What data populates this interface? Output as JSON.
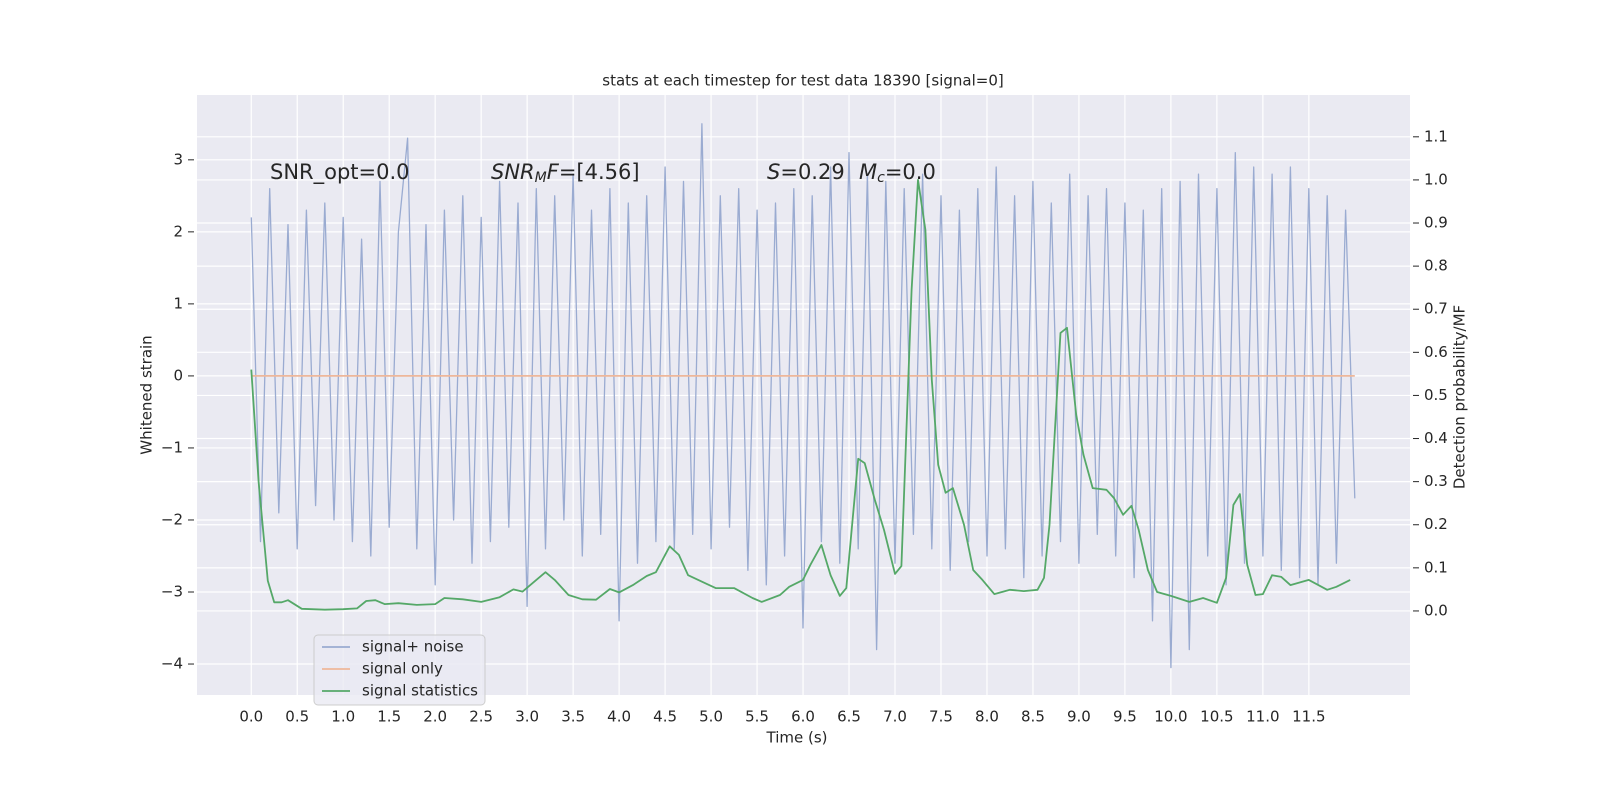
{
  "chart_data": {
    "type": "line",
    "title": "stats at each timestep for test data 18390 [signal=0]",
    "xlabel": "Time (s)",
    "ylabel": "Whitened strain",
    "y2label": "Detection probability/MF",
    "annotations": [
      {
        "parts": [
          {
            "text": "SNR_opt=0.0"
          }
        ]
      },
      {
        "parts": [
          {
            "text": "SNR",
            "italic": true
          },
          {
            "text": "M",
            "italic": true,
            "sub": true
          },
          {
            "text": "F",
            "italic": true
          },
          {
            "text": "=[4.56]"
          }
        ]
      },
      {
        "parts": [
          {
            "text": "S",
            "italic": true
          },
          {
            "text": "=0.29"
          }
        ]
      },
      {
        "parts": [
          {
            "text": "M",
            "italic": true
          },
          {
            "text": "c",
            "italic": true,
            "sub": true
          },
          {
            "text": "=0.0"
          }
        ]
      }
    ],
    "xlim": [
      -0.59,
      12.6
    ],
    "ylim": [
      -4.43,
      3.9
    ],
    "y2lim": [
      -0.195,
      1.197
    ],
    "xticks": [
      {
        "value": 0,
        "label": "0.0"
      },
      {
        "value": 0.5,
        "label": "0.5"
      },
      {
        "value": 1,
        "label": "1.0"
      },
      {
        "value": 1.5,
        "label": "1.5"
      },
      {
        "value": 2,
        "label": "2.0"
      },
      {
        "value": 2.5,
        "label": "2.5"
      },
      {
        "value": 3,
        "label": "3.0"
      },
      {
        "value": 3.5,
        "label": "3.5"
      },
      {
        "value": 4,
        "label": "4.0"
      },
      {
        "value": 4.5,
        "label": "4.5"
      },
      {
        "value": 5,
        "label": "5.0"
      },
      {
        "value": 5.5,
        "label": "5.5"
      },
      {
        "value": 6,
        "label": "6.0"
      },
      {
        "value": 6.5,
        "label": "6.5"
      },
      {
        "value": 7,
        "label": "7.0"
      },
      {
        "value": 7.5,
        "label": "7.5"
      },
      {
        "value": 8,
        "label": "8.0"
      },
      {
        "value": 8.5,
        "label": "8.5"
      },
      {
        "value": 9,
        "label": "9.0"
      },
      {
        "value": 9.5,
        "label": "9.5"
      },
      {
        "value": 10,
        "label": "10.0"
      },
      {
        "value": 10.5,
        "label": "10.5"
      },
      {
        "value": 11,
        "label": "11.0"
      },
      {
        "value": 11.5,
        "label": "11.5"
      }
    ],
    "yticks": [
      {
        "value": -4,
        "label": "−4"
      },
      {
        "value": -3,
        "label": "−3"
      },
      {
        "value": -2,
        "label": "−2"
      },
      {
        "value": -1,
        "label": "−1"
      },
      0,
      1,
      2,
      3
    ],
    "y2ticks": [
      {
        "value": 0,
        "label": "0.0"
      },
      {
        "value": 0.1,
        "label": "0.1"
      },
      {
        "value": 0.2,
        "label": "0.2"
      },
      {
        "value": 0.3,
        "label": "0.3"
      },
      {
        "value": 0.4,
        "label": "0.4"
      },
      {
        "value": 0.5,
        "label": "0.5"
      },
      {
        "value": 0.6,
        "label": "0.6"
      },
      {
        "value": 0.7,
        "label": "0.7"
      },
      {
        "value": 0.8,
        "label": "0.8"
      },
      {
        "value": 0.9,
        "label": "0.9"
      },
      {
        "value": 1.0,
        "label": "1.0"
      },
      {
        "value": 1.1,
        "label": "1.1"
      }
    ],
    "grid": true,
    "legend": "lower left",
    "series": [
      {
        "name": "signal+ noise",
        "color": "#9aabd1",
        "x": [
          0,
          0.1,
          0.2,
          0.3,
          0.4,
          0.5,
          0.6,
          0.7,
          0.8,
          0.9,
          1,
          1.1,
          1.2,
          1.3,
          1.4,
          1.5,
          1.6,
          1.7,
          1.8,
          1.9,
          2,
          2.1,
          2.2,
          2.3,
          2.4,
          2.5,
          2.6,
          2.7,
          2.8,
          2.9,
          3,
          3.1,
          3.2,
          3.3,
          3.4,
          3.5,
          3.6,
          3.7,
          3.8,
          3.9,
          4,
          4.1,
          4.2,
          4.3,
          4.4,
          4.5,
          4.6,
          4.7,
          4.8,
          4.9,
          5,
          5.1,
          5.2,
          5.3,
          5.4,
          5.5,
          5.6,
          5.7,
          5.8,
          5.9,
          6,
          6.1,
          6.2,
          6.3,
          6.4,
          6.5,
          6.6,
          6.7,
          6.8,
          6.9,
          7,
          7.1,
          7.2,
          7.3,
          7.4,
          7.5,
          7.6,
          7.7,
          7.8,
          7.9,
          8,
          8.1,
          8.2,
          8.3,
          8.4,
          8.5,
          8.6,
          8.7,
          8.8,
          8.9,
          9,
          9.1,
          9.2,
          9.3,
          9.4,
          9.5,
          9.6,
          9.7,
          9.8,
          9.9,
          10,
          10.1,
          10.2,
          10.3,
          10.4,
          10.5,
          10.6,
          10.7,
          10.8,
          10.9,
          11,
          11.1,
          11.2,
          11.3,
          11.4,
          11.5,
          11.6,
          11.7,
          11.8,
          11.9,
          12
        ],
        "values": [
          2.2,
          -2.3,
          2.6,
          -1.9,
          2.1,
          -2.4,
          2.3,
          -1.8,
          2.4,
          -2.0,
          2.2,
          -2.3,
          1.9,
          -2.5,
          2.7,
          -2.1,
          2.0,
          3.3,
          -2.4,
          2.1,
          -2.9,
          2.3,
          -2.0,
          2.5,
          -2.6,
          2.2,
          -2.3,
          2.7,
          -2.1,
          2.4,
          -3.2,
          2.6,
          -2.4,
          2.5,
          -2.0,
          2.8,
          -2.5,
          2.3,
          -2.2,
          2.6,
          -3.4,
          2.4,
          -2.6,
          2.5,
          -2.3,
          2.9,
          -2.4,
          2.7,
          -2.2,
          3.5,
          -2.4,
          2.5,
          -2.1,
          2.6,
          -2.7,
          2.3,
          -2.9,
          2.4,
          -2.5,
          2.6,
          -3.5,
          2.5,
          -2.3,
          2.9,
          -2.6,
          3.1,
          -2.4,
          2.8,
          -3.8,
          2.7,
          -2.6,
          2.6,
          -2.2,
          2.8,
          -2.4,
          2.5,
          -2.7,
          2.3,
          -2.3,
          2.6,
          -2.5,
          2.9,
          -2.4,
          2.5,
          -2.8,
          2.7,
          -2.5,
          2.4,
          -2.3,
          2.8,
          -2.6,
          2.5,
          -2.2,
          2.6,
          -2.5,
          2.4,
          -2.8,
          2.3,
          -3.4,
          2.6,
          -4.05,
          2.7,
          -3.8,
          2.8,
          -2.5,
          2.6,
          -2.9,
          3.1,
          -2.6,
          2.9,
          -2.5,
          2.8,
          -2.7,
          2.9,
          -2.8,
          2.6,
          -2.9,
          2.5,
          -2.6,
          2.3,
          -1.7
        ]
      },
      {
        "name": "signal only",
        "color": "#eeb79a",
        "x": [
          0,
          12
        ],
        "values": [
          0,
          0
        ]
      },
      {
        "name": "signal statistics",
        "color": "#55a868",
        "axis": "y2",
        "x": [
          0,
          0.08,
          0.18,
          0.25,
          0.33,
          0.4,
          0.55,
          0.8,
          1.0,
          1.15,
          1.25,
          1.35,
          1.45,
          1.6,
          1.8,
          2.0,
          2.1,
          2.3,
          2.5,
          2.7,
          2.85,
          2.95,
          3.1,
          3.2,
          3.3,
          3.45,
          3.6,
          3.75,
          3.9,
          4.0,
          4.15,
          4.3,
          4.4,
          4.55,
          4.65,
          4.75,
          4.95,
          5.05,
          5.25,
          5.45,
          5.55,
          5.75,
          5.85,
          6.0,
          6.08,
          6.2,
          6.3,
          6.4,
          6.47,
          6.6,
          6.67,
          6.78,
          6.88,
          7.0,
          7.07,
          7.18,
          7.25,
          7.33,
          7.4,
          7.47,
          7.55,
          7.63,
          7.75,
          7.85,
          7.95,
          8.08,
          8.25,
          8.4,
          8.55,
          8.62,
          8.68,
          8.8,
          8.87,
          8.97,
          9.05,
          9.15,
          9.3,
          9.38,
          9.48,
          9.57,
          9.65,
          9.75,
          9.85,
          10.0,
          10.2,
          10.35,
          10.5,
          10.6,
          10.68,
          10.75,
          10.83,
          10.92,
          11.0,
          11.1,
          11.2,
          11.3,
          11.5,
          11.7,
          11.8,
          11.95
        ],
        "values": [
          0.56,
          0.3,
          0.07,
          0.02,
          0.02,
          0.025,
          0.005,
          0.003,
          0.004,
          0.006,
          0.023,
          0.025,
          0.016,
          0.018,
          0.014,
          0.016,
          0.03,
          0.027,
          0.021,
          0.032,
          0.05,
          0.045,
          0.072,
          0.09,
          0.072,
          0.037,
          0.027,
          0.026,
          0.051,
          0.043,
          0.06,
          0.081,
          0.09,
          0.15,
          0.13,
          0.083,
          0.063,
          0.053,
          0.053,
          0.03,
          0.021,
          0.037,
          0.056,
          0.072,
          0.107,
          0.153,
          0.083,
          0.035,
          0.053,
          0.353,
          0.343,
          0.258,
          0.188,
          0.086,
          0.104,
          0.745,
          1.0,
          0.884,
          0.536,
          0.339,
          0.274,
          0.285,
          0.2,
          0.095,
          0.072,
          0.039,
          0.049,
          0.046,
          0.049,
          0.077,
          0.2,
          0.645,
          0.657,
          0.455,
          0.362,
          0.285,
          0.281,
          0.262,
          0.223,
          0.244,
          0.188,
          0.095,
          0.044,
          0.035,
          0.021,
          0.03,
          0.019,
          0.077,
          0.246,
          0.271,
          0.107,
          0.037,
          0.039,
          0.083,
          0.079,
          0.06,
          0.072,
          0.049,
          0.056,
          0.072
        ]
      }
    ]
  }
}
